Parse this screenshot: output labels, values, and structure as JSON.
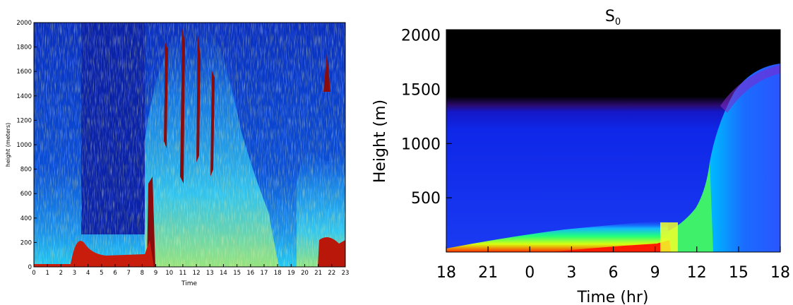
{
  "chart_data": [
    {
      "type": "heatmap",
      "title": "",
      "xlabel": "Time",
      "ylabel": "height (meters)",
      "xlim": [
        0,
        23
      ],
      "ylim": [
        0,
        2000
      ],
      "x_ticks": [
        0,
        1,
        2,
        3,
        4,
        5,
        6,
        7,
        8,
        9,
        10,
        11,
        12,
        13,
        14,
        15,
        16,
        17,
        18,
        19,
        20,
        21,
        22,
        23
      ],
      "x_tick_labels": [
        "0",
        "1",
        "2",
        "3",
        "4",
        "5",
        "6",
        "7",
        "8",
        "9",
        "10",
        "11",
        "12",
        "13",
        "14",
        "15",
        "16",
        "17",
        "18",
        "19",
        "20",
        "21",
        "22",
        "23"
      ],
      "y_ticks": [
        0,
        200,
        400,
        600,
        800,
        1000,
        1200,
        1400,
        1600,
        1800,
        2000
      ],
      "y_tick_labels": [
        "0",
        "200",
        "400",
        "600",
        "800",
        "1000",
        "1200",
        "1400",
        "1600",
        "1800",
        "2000"
      ],
      "colormap": [
        "#00008f",
        "#0000ff",
        "#0080ff",
        "#00ffff",
        "#80ff80",
        "#ffff00",
        "#ff8000",
        "#ff0000",
        "#800000"
      ],
      "grid": false,
      "legend": "none"
    },
    {
      "type": "heatmap",
      "title": "S",
      "title_subscript": "0",
      "xlabel": "Time (hr)",
      "ylabel": "Height (m)",
      "x_tick_labels": [
        "18",
        "21",
        "0",
        "3",
        "6",
        "9",
        "12",
        "15",
        "18"
      ],
      "y_ticks": [
        500,
        1000,
        1500,
        2000
      ],
      "y_tick_labels": [
        "500",
        "1000",
        "1500",
        "2000"
      ],
      "ylim": [
        0,
        2050
      ],
      "colormap": [
        "#000000",
        "#1a0066",
        "#0000ff",
        "#0066ff",
        "#00ccff",
        "#00ff66",
        "#ccff00",
        "#ff0000"
      ],
      "grid": false,
      "legend": "none"
    }
  ]
}
